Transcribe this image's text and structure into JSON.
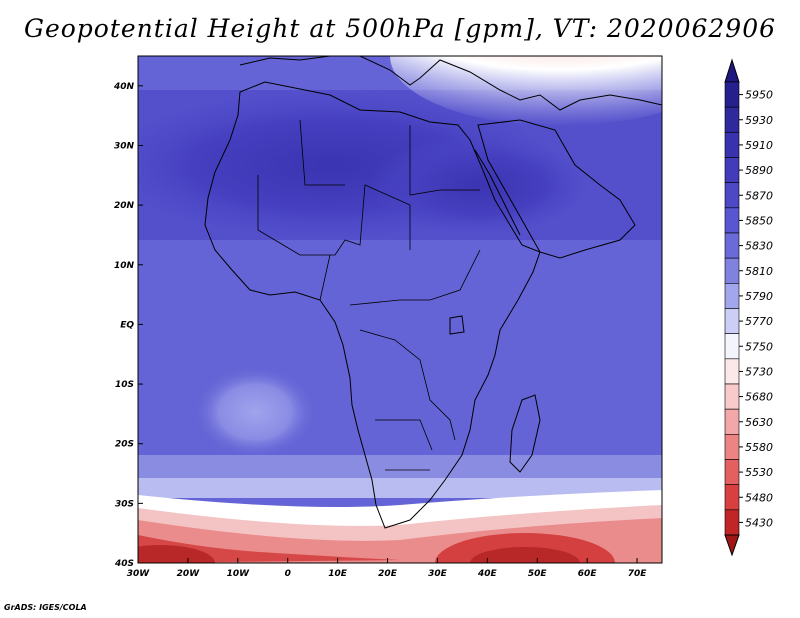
{
  "title": "Geopotential Height at 500hPa [gpm], VT: 2020062906",
  "footer": "GrADS: IGES/COLA",
  "map": {
    "projection": "latlon",
    "lon_range": [
      -30,
      75
    ],
    "lat_range": [
      -40,
      45
    ],
    "lon_ticks": [
      {
        "value": -30,
        "label": "30W"
      },
      {
        "value": -20,
        "label": "20W"
      },
      {
        "value": -10,
        "label": "10W"
      },
      {
        "value": 0,
        "label": "0"
      },
      {
        "value": 10,
        "label": "10E"
      },
      {
        "value": 20,
        "label": "20E"
      },
      {
        "value": 30,
        "label": "30E"
      },
      {
        "value": 40,
        "label": "40E"
      },
      {
        "value": 50,
        "label": "50E"
      },
      {
        "value": 60,
        "label": "60E"
      },
      {
        "value": 70,
        "label": "70E"
      }
    ],
    "lat_ticks": [
      {
        "value": 40,
        "label": "40N"
      },
      {
        "value": 30,
        "label": "30N"
      },
      {
        "value": 20,
        "label": "20N"
      },
      {
        "value": 10,
        "label": "10N"
      },
      {
        "value": 0,
        "label": "EQ"
      },
      {
        "value": -10,
        "label": "10S"
      },
      {
        "value": -20,
        "label": "20S"
      },
      {
        "value": -30,
        "label": "30S"
      },
      {
        "value": -40,
        "label": "40S"
      }
    ]
  },
  "colorbar": {
    "levels": [
      {
        "label": "5950",
        "color": "#26208e"
      },
      {
        "label": "5930",
        "color": "#2e2a9e"
      },
      {
        "label": "5910",
        "color": "#3832ae"
      },
      {
        "label": "5890",
        "color": "#423cbb"
      },
      {
        "label": "5870",
        "color": "#4c48c6"
      },
      {
        "label": "5850",
        "color": "#5856d0"
      },
      {
        "label": "5830",
        "color": "#6a6ad8"
      },
      {
        "label": "5810",
        "color": "#8082e0"
      },
      {
        "label": "5790",
        "color": "#a2a6ec"
      },
      {
        "label": "5770",
        "color": "#ccceF6"
      },
      {
        "label": "5750",
        "color": "#f4f4fc"
      },
      {
        "label": "5730",
        "color": "#fce8e8"
      },
      {
        "label": "5680",
        "color": "#f8caca"
      },
      {
        "label": "5630",
        "color": "#f2a8a8"
      },
      {
        "label": "5580",
        "color": "#ec8484"
      },
      {
        "label": "5530",
        "color": "#e46060"
      },
      {
        "label": "5480",
        "color": "#d84040"
      },
      {
        "label": "5430",
        "color": "#c02626"
      }
    ],
    "top_color": "#1e1880",
    "bottom_color": "#a01616"
  }
}
